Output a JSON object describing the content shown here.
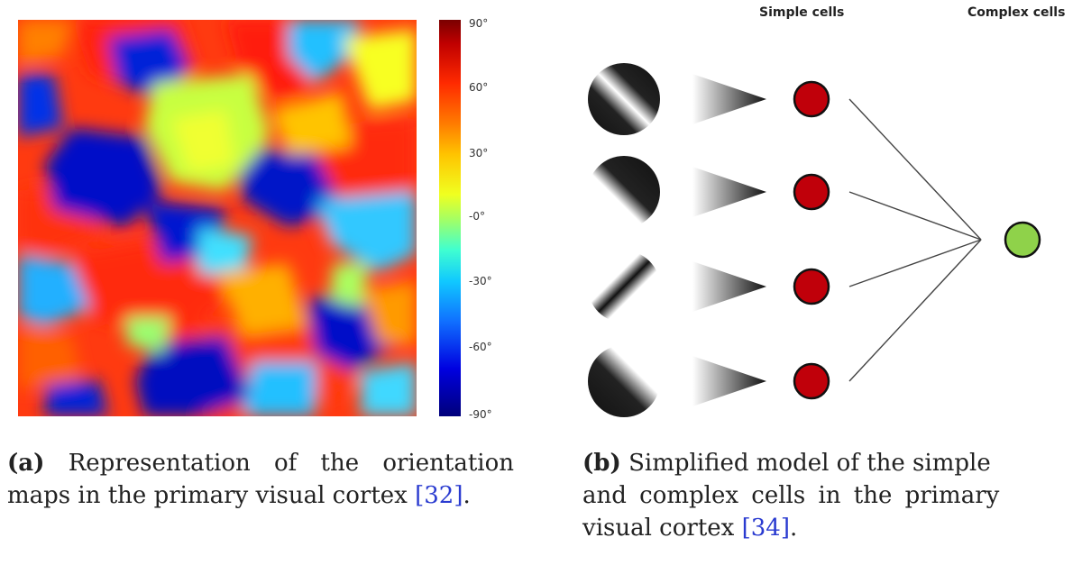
{
  "colorbar": {
    "ticks": [
      "90°",
      "60°",
      "30°",
      "-0°",
      "-30°",
      "-60°",
      "-90°"
    ]
  },
  "model": {
    "simple_label": "Simple cells",
    "complex_label": "Complex cells",
    "simple_cell_color": "#c0000a",
    "complex_cell_color": "#8fd24a"
  },
  "captions": {
    "a": {
      "label": "(a)",
      "text_before": "Representation of the orientation maps in the primary visual cortex ",
      "citation": "[32]",
      "text_after": "."
    },
    "b": {
      "label": "(b)",
      "line1": "Simplified model of the simple",
      "line2": "and complex cells in the primary",
      "line3_before": "visual cortex ",
      "citation": "[34]",
      "text_after": "."
    }
  }
}
